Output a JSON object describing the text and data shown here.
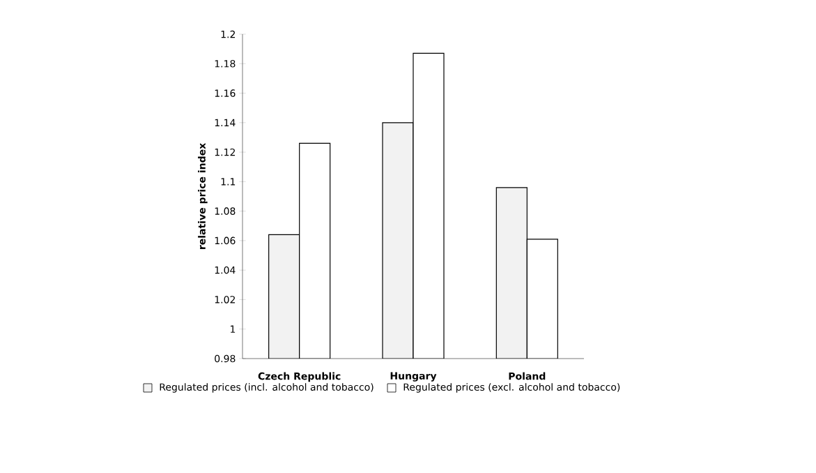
{
  "chart_data": {
    "type": "bar",
    "ylabel": "relative price index",
    "categories": [
      "Czech Republic",
      "Hungary",
      "Poland"
    ],
    "series": [
      {
        "name": "Regulated prices (incl. alcohol and tobacco)",
        "color": "#f2f2f2",
        "values": [
          1.064,
          1.14,
          1.096
        ]
      },
      {
        "name": "Regulated prices (excl. alcohol and tobacco)",
        "color": "#ffffff",
        "values": [
          1.126,
          1.187,
          1.061
        ]
      }
    ],
    "ylim": [
      0.98,
      1.2
    ],
    "yticks": [
      0.98,
      1,
      1.02,
      1.04,
      1.06,
      1.08,
      1.1,
      1.12,
      1.14,
      1.16,
      1.18,
      1.2
    ],
    "grid": false,
    "legend": "bottom"
  }
}
